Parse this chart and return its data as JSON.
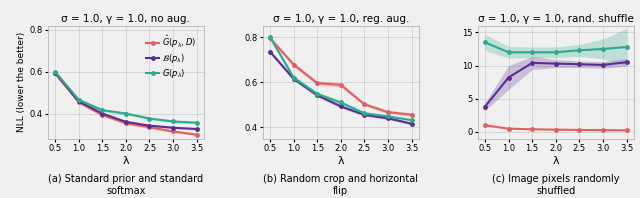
{
  "lambdas": [
    0.5,
    1.0,
    1.5,
    2.0,
    2.5,
    3.0,
    3.5
  ],
  "titles": [
    "σ = 1.0, γ = 1.0, no aug.",
    "σ = 1.0, γ = 1.0, reg. aug.",
    "σ = 1.0, γ = 1.0, rand. shuffle"
  ],
  "xlabel": "λ",
  "ylabel": "NLL (lower the better)",
  "captions": [
    "(a) Standard prior and standard\nsoftmax",
    "(b) Random crop and horizontal\nflip",
    "(c) Image pixels randomly\nshuffled"
  ],
  "colors": {
    "G_hat": "#e06060",
    "B": "#5b2d8e",
    "G": "#2aab90"
  },
  "legend_labels": [
    "$\\hat{G}(p_\\lambda, D)$",
    "$\\mathcal{B}(p_\\lambda)$",
    "$G(p_\\lambda)$"
  ],
  "panel1": {
    "G_hat_mean": [
      0.592,
      0.455,
      0.393,
      0.354,
      0.334,
      0.314,
      0.299
    ],
    "G_hat_std": [
      0.01,
      0.008,
      0.007,
      0.007,
      0.006,
      0.006,
      0.005
    ],
    "B_mean": [
      0.596,
      0.458,
      0.4,
      0.36,
      0.342,
      0.332,
      0.326
    ],
    "B_std": [
      0.008,
      0.007,
      0.006,
      0.006,
      0.005,
      0.005,
      0.004
    ],
    "G_mean": [
      0.6,
      0.466,
      0.416,
      0.4,
      0.376,
      0.362,
      0.356
    ],
    "G_std": [
      0.007,
      0.007,
      0.007,
      0.007,
      0.006,
      0.006,
      0.006
    ],
    "ylim": [
      0.28,
      0.82
    ],
    "yticks": [
      0.4,
      0.6,
      0.8
    ]
  },
  "panel2": {
    "G_hat_mean": [
      0.795,
      0.678,
      0.596,
      0.588,
      0.502,
      0.467,
      0.456
    ],
    "G_hat_std": [
      0.01,
      0.01,
      0.01,
      0.01,
      0.008,
      0.008,
      0.008
    ],
    "B_mean": [
      0.735,
      0.615,
      0.542,
      0.493,
      0.455,
      0.44,
      0.416
    ],
    "B_std": [
      0.008,
      0.008,
      0.008,
      0.008,
      0.006,
      0.006,
      0.006
    ],
    "G_mean": [
      0.8,
      0.62,
      0.548,
      0.51,
      0.462,
      0.448,
      0.432
    ],
    "G_std": [
      0.01,
      0.01,
      0.008,
      0.008,
      0.008,
      0.006,
      0.006
    ],
    "ylim": [
      0.35,
      0.85
    ],
    "yticks": [
      0.4,
      0.6,
      0.8
    ]
  },
  "panel3": {
    "G_hat_mean": [
      1.0,
      0.5,
      0.4,
      0.35,
      0.3,
      0.28,
      0.25
    ],
    "G_hat_std": [
      0.05,
      0.04,
      0.03,
      0.03,
      0.02,
      0.02,
      0.02
    ],
    "B_mean": [
      3.8,
      8.2,
      10.4,
      10.3,
      10.2,
      10.1,
      10.5
    ],
    "B_std": [
      0.6,
      1.8,
      1.0,
      0.6,
      0.5,
      0.5,
      0.6
    ],
    "G_mean": [
      13.5,
      12.0,
      12.0,
      12.0,
      12.3,
      12.5,
      12.8
    ],
    "G_std": [
      1.2,
      0.9,
      0.8,
      0.8,
      0.9,
      1.5,
      2.8
    ],
    "ylim": [
      -1,
      16
    ],
    "yticks": [
      0,
      5,
      10,
      15
    ]
  },
  "fig_bg": "#f0f0f0",
  "axes_bg": "#f0f0f0"
}
